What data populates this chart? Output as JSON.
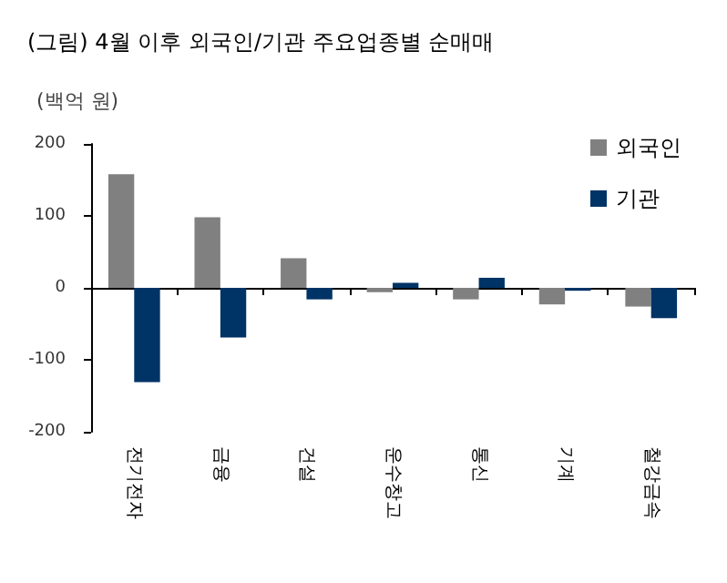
{
  "chart_data": {
    "type": "bar",
    "title": "(그림) 4월 이후 외국인/기관 주요업종별 순매매",
    "ylabel": "(백억 원)",
    "categories": [
      "전기전자",
      "금융",
      "건설",
      "운수창고",
      "통신",
      "기계",
      "철강금속"
    ],
    "series": [
      {
        "name": "외국인",
        "color": "#808080",
        "values": [
          158,
          98,
          41,
          -6,
          -16,
          -23,
          -26
        ]
      },
      {
        "name": "기관",
        "color": "#003366",
        "values": [
          -131,
          -69,
          -16,
          7,
          14,
          -4,
          -42
        ]
      }
    ],
    "ylim": [
      -200,
      200
    ],
    "yticks": [
      -200,
      -100,
      0,
      100,
      200
    ],
    "legend": "top right"
  }
}
